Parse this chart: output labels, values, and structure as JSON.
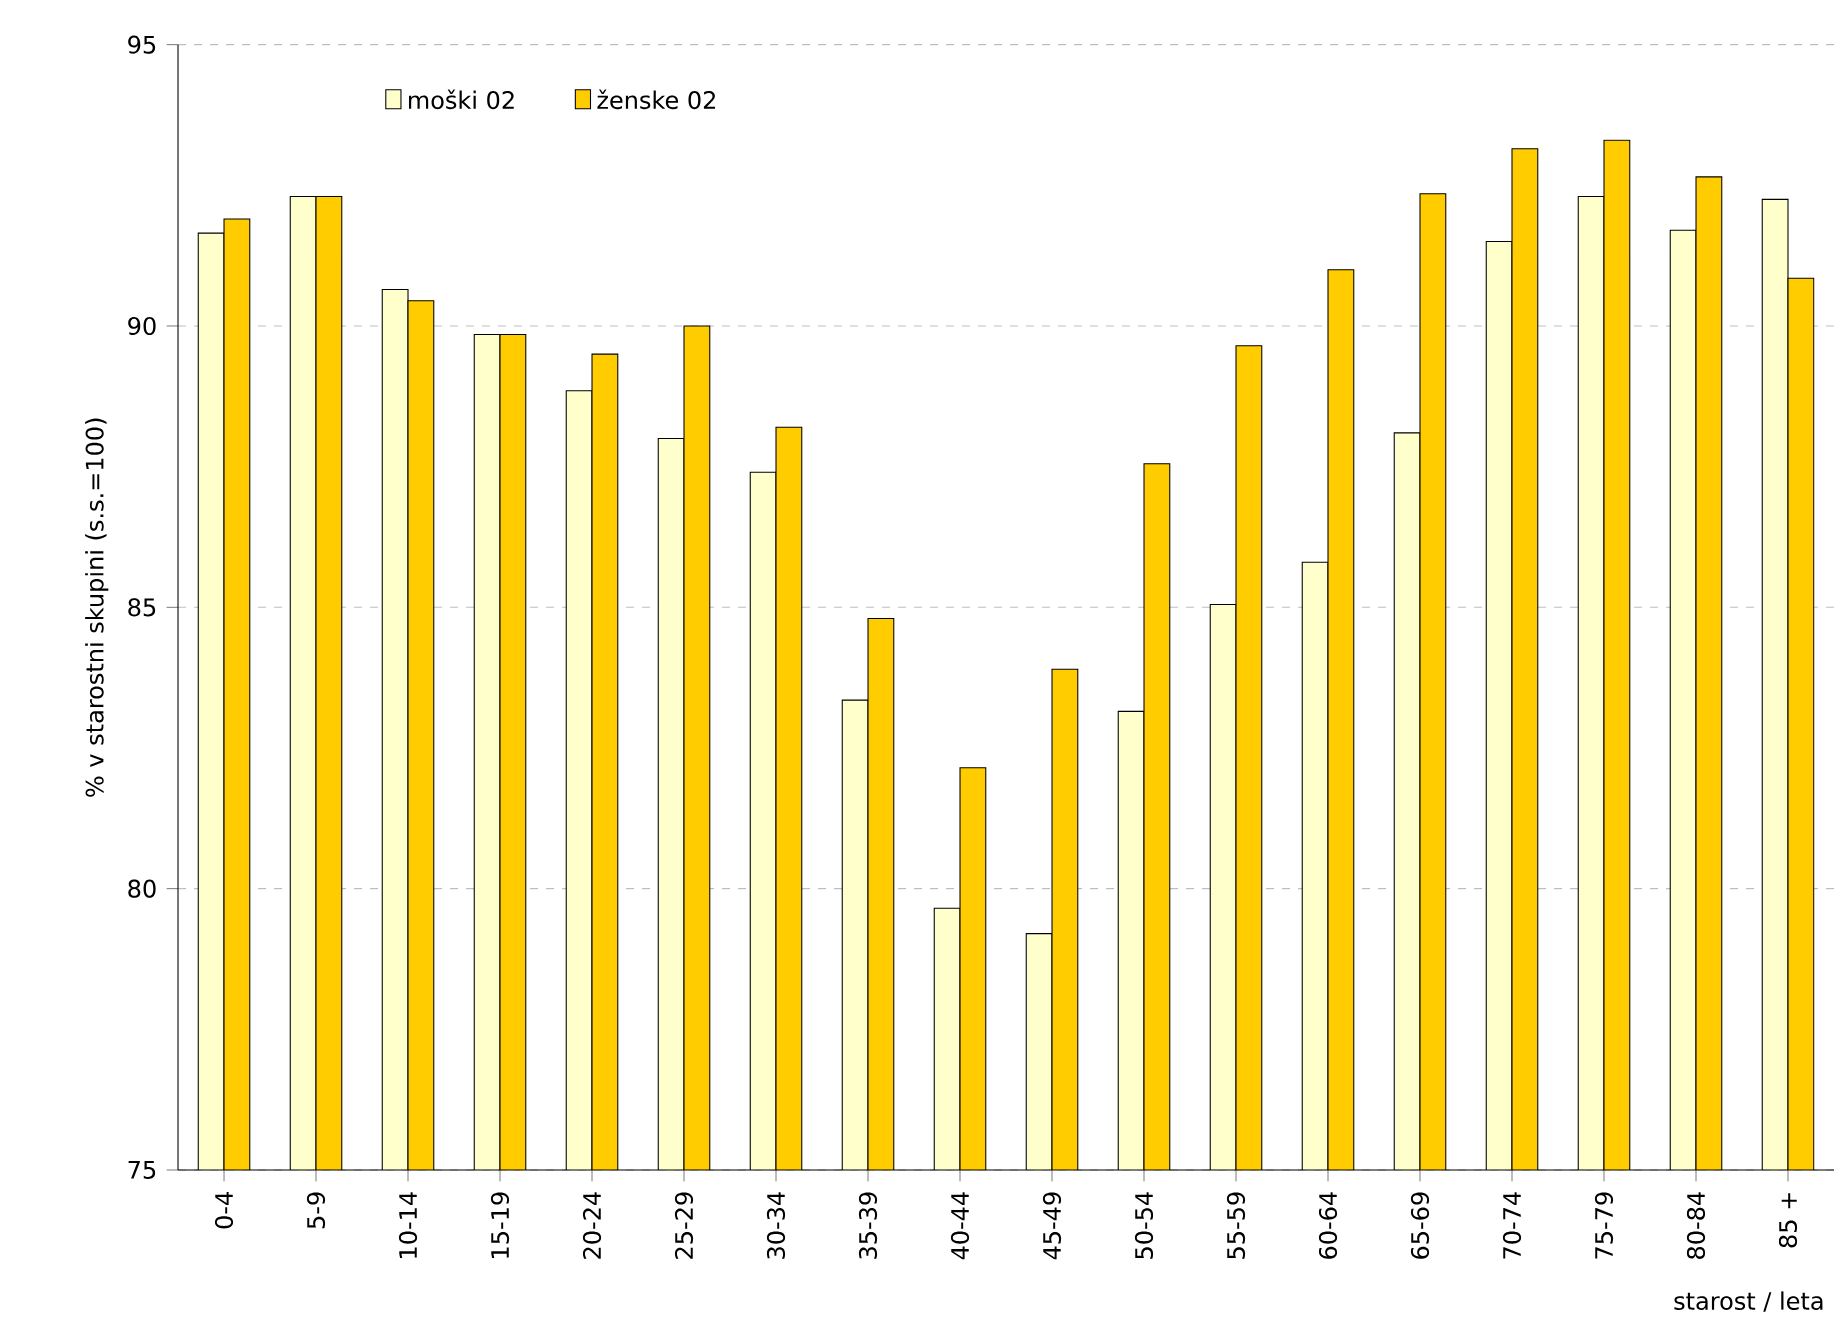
{
  "chart_data": {
    "type": "bar",
    "ylabel": "% v starostni skupini (s.s.=100)",
    "xlabel": "starost / leta",
    "categories": [
      "0-4",
      "5-9",
      "10-14",
      "15-19",
      "20-24",
      "25-29",
      "30-34",
      "35-39",
      "40-44",
      "45-49",
      "50-54",
      "55-59",
      "60-64",
      "65-69",
      "70-74",
      "75-79",
      "80-84",
      "85 +"
    ],
    "series": [
      {
        "name": "moški 02",
        "color": "#ffffcc",
        "values": [
          91.65,
          92.3,
          90.65,
          89.85,
          88.85,
          88.0,
          87.4,
          83.35,
          79.65,
          79.2,
          83.15,
          85.05,
          85.8,
          88.1,
          91.5,
          92.3,
          91.7,
          92.25
        ]
      },
      {
        "name": "ženske 02",
        "color": "#ffcc00",
        "values": [
          91.9,
          92.3,
          90.45,
          89.85,
          89.5,
          90.0,
          88.2,
          84.8,
          82.15,
          83.9,
          87.55,
          89.65,
          91.0,
          92.35,
          93.15,
          93.3,
          92.65,
          90.85
        ]
      }
    ],
    "ylim": [
      75,
      95
    ],
    "yticks": [
      75,
      80,
      85,
      90,
      95
    ],
    "grid": "y",
    "legend": "top left"
  }
}
